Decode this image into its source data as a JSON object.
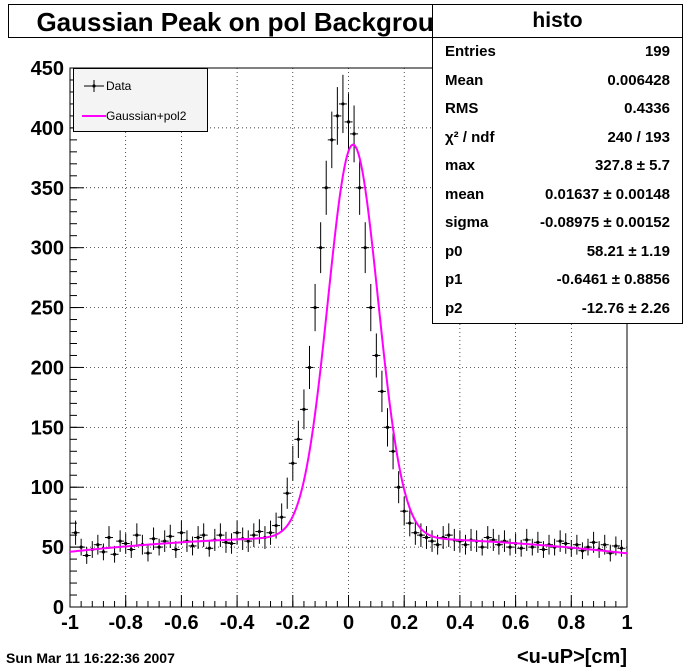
{
  "title": "Gaussian Peak on pol Background",
  "stats": {
    "title": "histo",
    "rows": [
      {
        "key": "Entries",
        "value": "199"
      },
      {
        "key": "Mean",
        "value": "0.006428"
      },
      {
        "key": "RMS",
        "value": "0.4336"
      },
      {
        "key": "χ² / ndf",
        "value": "240 / 193"
      },
      {
        "key": "max",
        "value": "327.8 ± 5.7"
      },
      {
        "key": "mean",
        "value": "0.01637 ± 0.00148"
      },
      {
        "key": "sigma",
        "value": "-0.08975 ± 0.00152"
      },
      {
        "key": "p0",
        "value": "58.21 ± 1.19"
      },
      {
        "key": "p1",
        "value": "-0.6461 ± 0.8856"
      },
      {
        "key": "p2",
        "value": "-12.76 ± 2.26"
      }
    ]
  },
  "legend": {
    "data_label": "Data",
    "fit_label": "Gaussian+pol2"
  },
  "date": "Sun Mar 11 16:22:36 2007",
  "colors": {
    "data": "#000000",
    "fit": "#ff00ff",
    "grid": "#000000"
  },
  "chart_data": {
    "type": "scatter",
    "xlabel": "<u-uP>[cm]",
    "ylabel": "",
    "xlim": [
      -1,
      1
    ],
    "ylim": [
      0,
      450
    ],
    "xticks": [
      "-1",
      "-0.8",
      "-0.6",
      "-0.4",
      "-0.2",
      "0",
      "0.2",
      "0.4",
      "0.6",
      "0.8",
      "1"
    ],
    "yticks": [
      "0",
      "50",
      "100",
      "150",
      "200",
      "250",
      "300",
      "350",
      "400",
      "450"
    ],
    "grid": true,
    "legend_position": "top-left",
    "series": [
      {
        "name": "Data",
        "x": [
          -0.98,
          -0.96,
          -0.94,
          -0.92,
          -0.9,
          -0.88,
          -0.86,
          -0.84,
          -0.82,
          -0.8,
          -0.78,
          -0.76,
          -0.74,
          -0.72,
          -0.7,
          -0.68,
          -0.66,
          -0.64,
          -0.62,
          -0.6,
          -0.58,
          -0.56,
          -0.54,
          -0.52,
          -0.5,
          -0.48,
          -0.46,
          -0.44,
          -0.42,
          -0.4,
          -0.38,
          -0.36,
          -0.34,
          -0.32,
          -0.3,
          -0.28,
          -0.26,
          -0.24,
          -0.22,
          -0.2,
          -0.18,
          -0.16,
          -0.14,
          -0.12,
          -0.1,
          -0.08,
          -0.06,
          -0.04,
          -0.02,
          0.0,
          0.02,
          0.04,
          0.06,
          0.08,
          0.1,
          0.12,
          0.14,
          0.16,
          0.18,
          0.2,
          0.22,
          0.24,
          0.26,
          0.28,
          0.3,
          0.32,
          0.34,
          0.36,
          0.38,
          0.4,
          0.42,
          0.44,
          0.46,
          0.48,
          0.5,
          0.52,
          0.54,
          0.56,
          0.58,
          0.6,
          0.62,
          0.64,
          0.66,
          0.68,
          0.7,
          0.72,
          0.74,
          0.76,
          0.78,
          0.8,
          0.82,
          0.84,
          0.86,
          0.88,
          0.9,
          0.92,
          0.94,
          0.96,
          0.98
        ],
        "y": [
          62,
          50,
          43,
          48,
          52,
          46,
          58,
          44,
          55,
          53,
          48,
          60,
          52,
          45,
          57,
          50,
          55,
          59,
          48,
          62,
          55,
          51,
          58,
          60,
          49,
          56,
          60,
          54,
          53,
          62,
          57,
          55,
          60,
          63,
          58,
          62,
          68,
          75,
          95,
          120,
          140,
          165,
          200,
          250,
          300,
          350,
          390,
          410,
          420,
          405,
          395,
          350,
          300,
          250,
          210,
          180,
          150,
          130,
          100,
          80,
          70,
          62,
          60,
          58,
          55,
          52,
          58,
          60,
          56,
          55,
          52,
          56,
          55,
          50,
          58,
          56,
          52,
          55,
          50,
          53,
          49,
          56,
          50,
          54,
          48,
          52,
          50,
          55,
          53,
          49,
          52,
          47,
          50,
          54,
          48,
          52,
          45,
          51,
          49
        ],
        "err": 7
      },
      {
        "name": "Gaussian+pol2",
        "params": {
          "max": 327.8,
          "mean": 0.01637,
          "sigma": -0.08975,
          "p0": 58.21,
          "p1": -0.6461,
          "p2": -12.76
        }
      }
    ]
  }
}
